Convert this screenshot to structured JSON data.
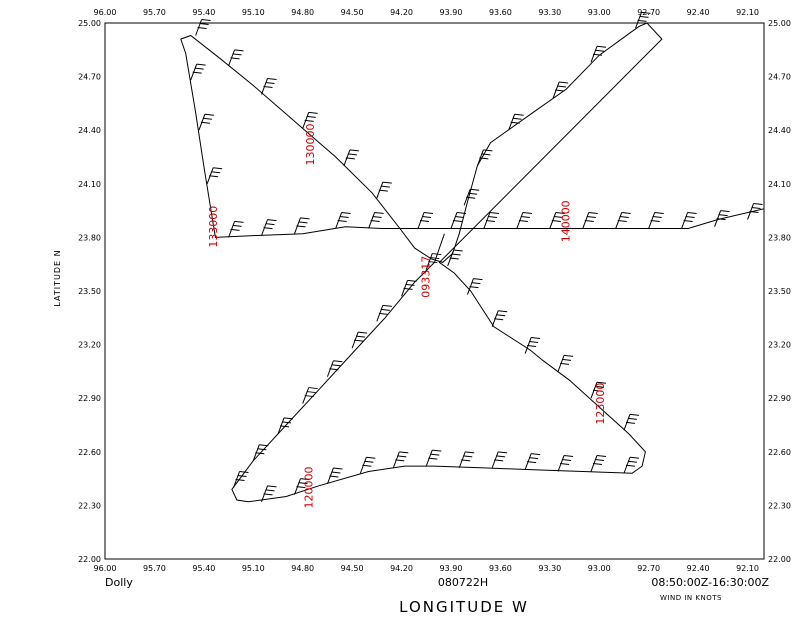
{
  "chart_data": {
    "type": "line",
    "x_label": "LONGITUDE   W",
    "y_label": "LATITUDE   N",
    "x_range": [
      96.0,
      92.0
    ],
    "y_range": [
      22.0,
      25.0
    ],
    "x_ticks": [
      "96.00",
      "95.70",
      "95.40",
      "95.10",
      "94.80",
      "94.50",
      "94.20",
      "93.90",
      "93.60",
      "93.30",
      "93.00",
      "92.70",
      "92.40",
      "92.10"
    ],
    "y_ticks": [
      "25.00",
      "24.70",
      "24.40",
      "24.10",
      "23.80",
      "23.50",
      "23.20",
      "22.90",
      "22.60",
      "22.30",
      "22.00"
    ],
    "footer": {
      "storm": "Dolly",
      "date": "080722H",
      "time_range": "08:50:00Z-16:30:00Z",
      "units": "WIND IN KNOTS"
    },
    "time_labels": [
      {
        "text": "130000",
        "lon": 94.73,
        "lat": 24.32
      },
      {
        "text": "133000",
        "lon": 95.32,
        "lat": 23.86
      },
      {
        "text": "140000",
        "lon": 93.18,
        "lat": 23.89
      },
      {
        "text": "093317",
        "lon": 94.03,
        "lat": 23.58
      },
      {
        "text": "123000",
        "lon": 92.97,
        "lat": 22.87
      },
      {
        "text": "120000",
        "lon": 94.74,
        "lat": 22.4
      }
    ],
    "flight_track": [
      [
        92.0,
        23.96
      ],
      [
        92.28,
        23.9
      ],
      [
        92.46,
        23.85
      ],
      [
        93.34,
        23.85
      ],
      [
        93.83,
        23.85
      ],
      [
        94.2,
        23.85
      ],
      [
        94.32,
        23.85
      ],
      [
        94.54,
        23.86
      ],
      [
        94.8,
        23.82
      ],
      [
        95.1,
        23.81
      ],
      [
        95.33,
        23.8
      ],
      [
        95.4,
        24.2
      ],
      [
        95.45,
        24.5
      ],
      [
        95.51,
        24.83
      ],
      [
        95.54,
        24.91
      ],
      [
        95.48,
        24.93
      ],
      [
        95.3,
        24.8
      ],
      [
        95.1,
        24.65
      ],
      [
        94.85,
        24.45
      ],
      [
        94.6,
        24.25
      ],
      [
        94.38,
        24.05
      ],
      [
        94.21,
        23.85
      ],
      [
        94.12,
        23.74
      ],
      [
        94.02,
        23.68
      ],
      [
        93.95,
        23.66
      ],
      [
        93.89,
        23.71
      ],
      [
        93.85,
        23.82
      ],
      [
        93.8,
        24.0
      ],
      [
        93.74,
        24.2
      ],
      [
        93.66,
        24.33
      ],
      [
        93.4,
        24.5
      ],
      [
        93.2,
        24.63
      ],
      [
        93.0,
        24.82
      ],
      [
        92.82,
        24.94
      ],
      [
        92.76,
        24.98
      ],
      [
        92.71,
        25.0
      ],
      [
        92.62,
        24.91
      ],
      [
        93.97,
        23.66
      ],
      [
        93.88,
        23.6
      ],
      [
        93.78,
        23.5
      ],
      [
        93.64,
        23.3
      ],
      [
        93.42,
        23.17
      ],
      [
        93.34,
        23.11
      ],
      [
        93.18,
        23.0
      ],
      [
        93.0,
        22.85
      ],
      [
        92.82,
        22.7
      ],
      [
        92.72,
        22.6
      ],
      [
        92.74,
        22.52
      ],
      [
        92.8,
        22.48
      ],
      [
        93.1,
        22.49
      ],
      [
        93.4,
        22.5
      ],
      [
        93.7,
        22.51
      ],
      [
        94.0,
        22.52
      ],
      [
        94.18,
        22.52
      ],
      [
        94.4,
        22.49
      ],
      [
        94.7,
        22.41
      ],
      [
        94.9,
        22.35
      ],
      [
        95.13,
        22.32
      ],
      [
        95.2,
        22.33
      ],
      [
        95.23,
        22.39
      ],
      [
        95.1,
        22.55
      ],
      [
        94.9,
        22.75
      ],
      [
        94.7,
        22.95
      ],
      [
        94.5,
        23.15
      ],
      [
        94.3,
        23.35
      ],
      [
        94.12,
        23.55
      ],
      [
        94.0,
        23.66
      ],
      [
        93.97,
        23.74
      ],
      [
        93.94,
        23.82
      ]
    ],
    "wind_barb_points": [
      [
        92.1,
        23.9
      ],
      [
        92.3,
        23.86
      ],
      [
        92.5,
        23.85
      ],
      [
        92.7,
        23.85
      ],
      [
        92.9,
        23.85
      ],
      [
        93.1,
        23.85
      ],
      [
        93.3,
        23.85
      ],
      [
        93.5,
        23.85
      ],
      [
        93.7,
        23.85
      ],
      [
        93.9,
        23.85
      ],
      [
        94.1,
        23.85
      ],
      [
        94.4,
        23.85
      ],
      [
        94.6,
        23.85
      ],
      [
        94.85,
        23.82
      ],
      [
        95.05,
        23.81
      ],
      [
        95.25,
        23.8
      ],
      [
        95.38,
        24.1
      ],
      [
        95.43,
        24.4
      ],
      [
        95.48,
        24.68
      ],
      [
        95.45,
        24.93
      ],
      [
        95.25,
        24.76
      ],
      [
        95.05,
        24.6
      ],
      [
        94.8,
        24.41
      ],
      [
        94.55,
        24.2
      ],
      [
        94.35,
        24.02
      ],
      [
        93.82,
        23.98
      ],
      [
        93.74,
        24.2
      ],
      [
        93.55,
        24.4
      ],
      [
        93.28,
        24.58
      ],
      [
        93.05,
        24.78
      ],
      [
        92.78,
        24.97
      ],
      [
        93.92,
        23.64
      ],
      [
        93.8,
        23.48
      ],
      [
        93.65,
        23.3
      ],
      [
        93.45,
        23.15
      ],
      [
        93.25,
        23.05
      ],
      [
        93.05,
        22.9
      ],
      [
        92.85,
        22.72
      ],
      [
        92.85,
        22.48
      ],
      [
        93.05,
        22.49
      ],
      [
        93.25,
        22.49
      ],
      [
        93.45,
        22.5
      ],
      [
        93.65,
        22.51
      ],
      [
        93.85,
        22.51
      ],
      [
        94.05,
        22.52
      ],
      [
        94.25,
        22.51
      ],
      [
        94.45,
        22.48
      ],
      [
        94.65,
        22.42
      ],
      [
        94.85,
        22.36
      ],
      [
        95.05,
        22.32
      ],
      [
        95.22,
        22.4
      ],
      [
        95.1,
        22.55
      ],
      [
        94.95,
        22.7
      ],
      [
        94.8,
        22.87
      ],
      [
        94.65,
        23.02
      ],
      [
        94.5,
        23.18
      ],
      [
        94.35,
        23.33
      ],
      [
        94.2,
        23.47
      ],
      [
        94.05,
        23.62
      ]
    ]
  }
}
